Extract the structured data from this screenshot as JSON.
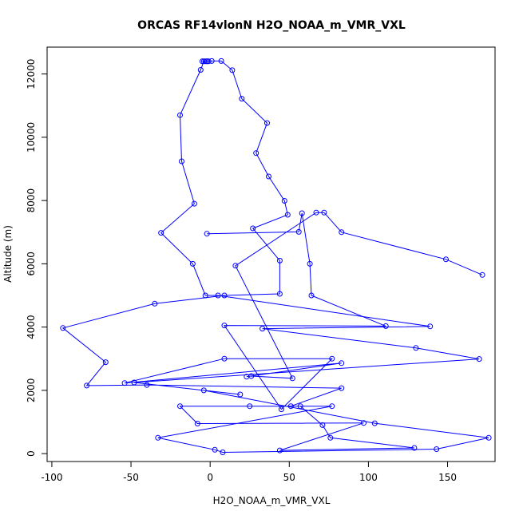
{
  "chart_data": {
    "type": "scatter",
    "title": "ORCAS RF14vlonN H2O_NOAA_m_VMR_VXL",
    "xlabel": "H2O_NOAA_m_VMR_VXL",
    "ylabel": "Altitude (m)",
    "xlim": [
      -103,
      180
    ],
    "ylim": [
      -250,
      12850
    ],
    "x_ticks": [
      -100,
      -50,
      0,
      50,
      100,
      150
    ],
    "x_tick_labels": [
      "-100",
      "-50",
      "0",
      "50",
      "100",
      "150"
    ],
    "y_ticks": [
      0,
      2000,
      4000,
      6000,
      8000,
      10000,
      12000
    ],
    "y_tick_labels": [
      "0",
      "2000",
      "4000",
      "6000",
      "8000",
      "10000",
      "12000"
    ],
    "grid": false,
    "connected": true,
    "color": "#0000ff",
    "points": [
      [
        -5,
        12400
      ],
      [
        -3,
        12400
      ],
      [
        -2,
        12400
      ],
      [
        1,
        12410
      ],
      [
        7,
        12410
      ],
      [
        14,
        12120
      ],
      [
        20,
        11220
      ],
      [
        36,
        10450
      ],
      [
        29,
        9500
      ],
      [
        37,
        8760
      ],
      [
        47,
        7990
      ],
      [
        49,
        7550
      ],
      [
        27,
        7120
      ],
      [
        44,
        6100
      ],
      [
        44,
        5050
      ],
      [
        9,
        5000
      ],
      [
        -35,
        4740
      ],
      [
        -93,
        3970
      ],
      [
        -66,
        2890
      ],
      [
        -78,
        2150
      ],
      [
        -40,
        2170
      ],
      [
        83,
        2070
      ],
      [
        51,
        1500
      ],
      [
        57,
        1500
      ],
      [
        71,
        900
      ],
      [
        76,
        500
      ],
      [
        129,
        180
      ],
      [
        44,
        100
      ],
      [
        97,
        970
      ],
      [
        -8,
        950
      ],
      [
        -19,
        1500
      ],
      [
        25,
        1500
      ],
      [
        77,
        1500
      ],
      [
        -33,
        500
      ],
      [
        3,
        120
      ],
      [
        8,
        40
      ],
      [
        143,
        140
      ],
      [
        176,
        500
      ],
      [
        104,
        960
      ],
      [
        -4,
        2000
      ],
      [
        19,
        1870
      ],
      [
        -48,
        2250
      ],
      [
        170,
        2990
      ],
      [
        130,
        3340
      ],
      [
        33,
        3950
      ],
      [
        139,
        4020
      ],
      [
        5,
        5000
      ],
      [
        -3,
        5000
      ],
      [
        -11,
        6000
      ],
      [
        -31,
        6980
      ],
      [
        -10,
        7900
      ],
      [
        -18,
        9240
      ],
      [
        -19,
        10700
      ],
      [
        -6,
        12130
      ],
      [
        -4,
        12400
      ],
      [
        -1,
        12400
      ],
      [
        -2,
        12400
      ]
    ],
    "points_b": [
      [
        -2,
        6950
      ],
      [
        56,
        7010
      ],
      [
        58,
        7600
      ],
      [
        63,
        6000
      ],
      [
        64,
        5000
      ],
      [
        111,
        4030
      ],
      [
        9,
        4050
      ],
      [
        45,
        1400
      ],
      [
        77,
        3000
      ],
      [
        9,
        3000
      ],
      [
        -54,
        2230
      ],
      [
        83,
        2860
      ],
      [
        23,
        2430
      ],
      [
        26,
        2450
      ],
      [
        52,
        2380
      ],
      [
        16,
        5940
      ],
      [
        67,
        7620
      ],
      [
        72,
        7620
      ],
      [
        83,
        7000
      ],
      [
        149,
        6140
      ],
      [
        172,
        5650
      ]
    ]
  }
}
